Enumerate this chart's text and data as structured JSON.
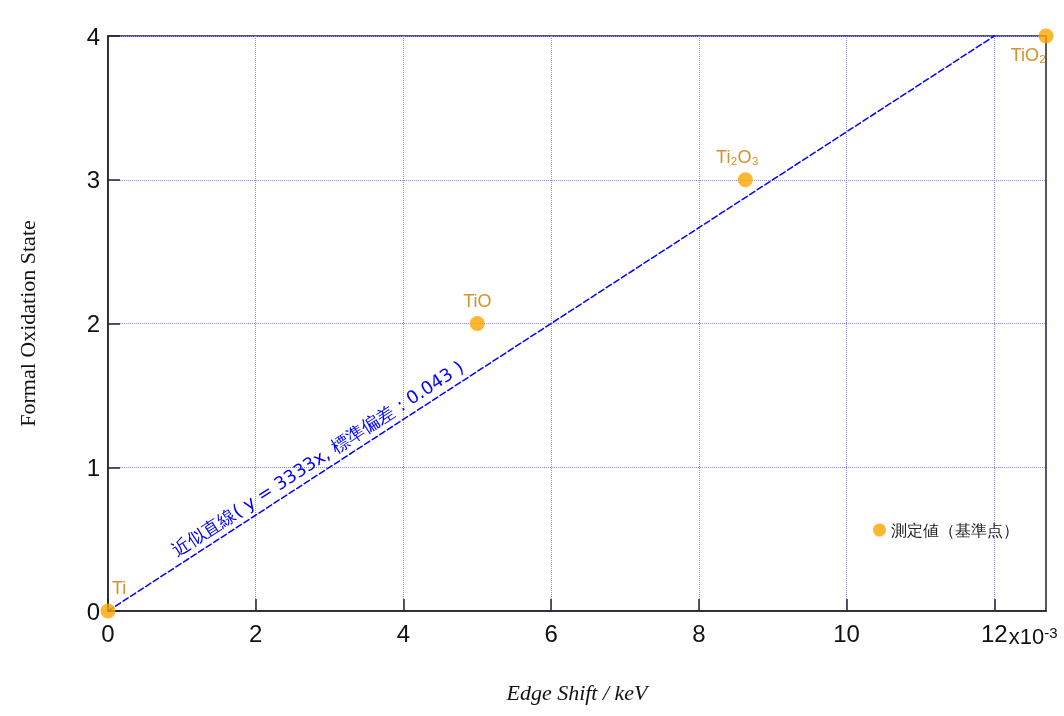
{
  "chart_data": {
    "type": "scatter",
    "xlabel": "Edge Shift / keV",
    "ylabel": "Formal Oxidation State",
    "xlim": [
      0,
      12.7
    ],
    "xticks": [
      0,
      2,
      4,
      6,
      8,
      10,
      12
    ],
    "ylim": [
      0,
      4
    ],
    "yticks": [
      0,
      1,
      2,
      3,
      4
    ],
    "grid": true,
    "legend": "bottom right",
    "marker": "circle",
    "series": [
      {
        "name": "測定値（基準点）",
        "color": "#ffa500",
        "x": [
          0,
          5.0,
          8.63,
          12.7
        ],
        "values": [
          0,
          2,
          3,
          4
        ]
      },
      {
        "type": "line",
        "color": "#0000ff",
        "line_style": "dashed",
        "marker": "none",
        "x": [
          0,
          12
        ],
        "values": [
          0,
          4
        ]
      }
    ],
    "annotations": [
      {
        "text": "Ti",
        "x": 0,
        "y": 0
      },
      {
        "text": "TiO",
        "x": 5.0,
        "y": 2
      },
      {
        "text": "Ti₂O₃",
        "x": 8.63,
        "y": 3
      },
      {
        "text": "TiO₂",
        "x": 12.7,
        "y": 4
      },
      "x10$^{-3}$",
      "近似直線( y = 3333x, 標準偏差 : 0.043 )"
    ]
  }
}
